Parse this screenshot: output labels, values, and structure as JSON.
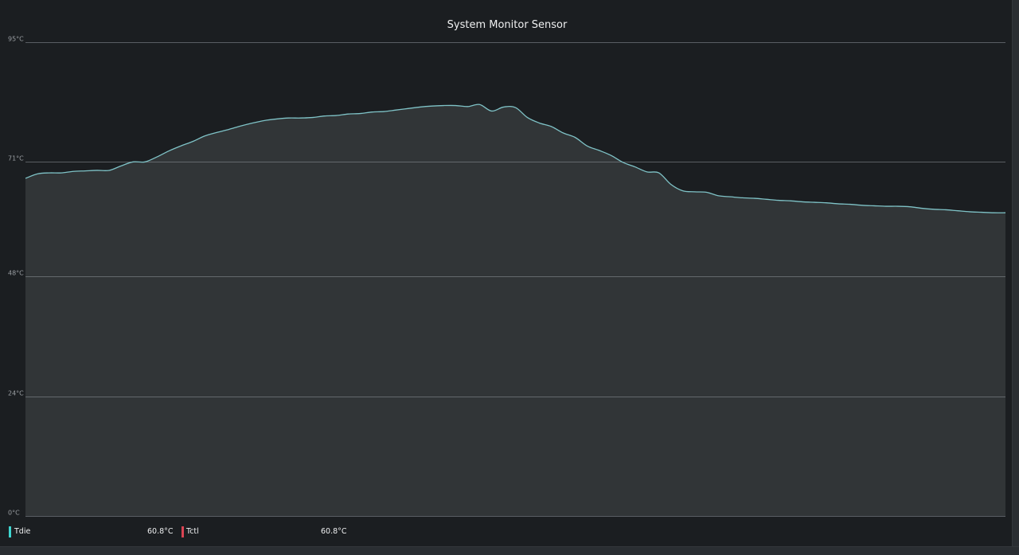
{
  "chart_data": {
    "type": "area",
    "title": "System Monitor Sensor",
    "unit": "°C",
    "ylim": [
      0,
      95
    ],
    "yticks": [
      "95°C",
      "71°C",
      "48°C",
      "24°C",
      "0°C"
    ],
    "ytick_values": [
      95,
      71,
      48,
      24,
      0
    ],
    "grid": true,
    "legend_position": "bottom-left",
    "series": [
      {
        "name": "Tdie",
        "color": "#3daee9",
        "current": "60.8°C",
        "values": [
          67.7,
          68.6,
          68.8,
          68.8,
          69.1,
          69.2,
          69.3,
          69.3,
          70.2,
          71.0,
          71.0,
          72.0,
          73.2,
          74.2,
          75.1,
          76.2,
          76.9,
          77.5,
          78.2,
          78.8,
          79.3,
          79.6,
          79.8,
          79.8,
          79.9,
          80.2,
          80.3,
          80.6,
          80.7,
          81.0,
          81.1,
          81.4,
          81.7,
          82.0,
          82.2,
          82.3,
          82.3,
          82.1,
          82.5,
          81.2,
          82.0,
          81.9,
          79.9,
          78.8,
          78.1,
          76.8,
          75.9,
          74.2,
          73.3,
          72.3,
          70.9,
          70.0,
          69.0,
          68.8,
          66.5,
          65.2,
          65.0,
          64.9,
          64.2,
          64.0,
          63.8,
          63.7,
          63.5,
          63.3,
          63.2,
          63.0,
          62.9,
          62.8,
          62.6,
          62.5,
          62.3,
          62.2,
          62.1,
          62.1,
          62.0,
          61.7,
          61.5,
          61.4,
          61.2,
          61.0,
          60.9,
          60.8,
          60.8
        ]
      },
      {
        "name": "Tctl",
        "color": "#da4453",
        "current": "60.8°C"
      }
    ]
  }
}
